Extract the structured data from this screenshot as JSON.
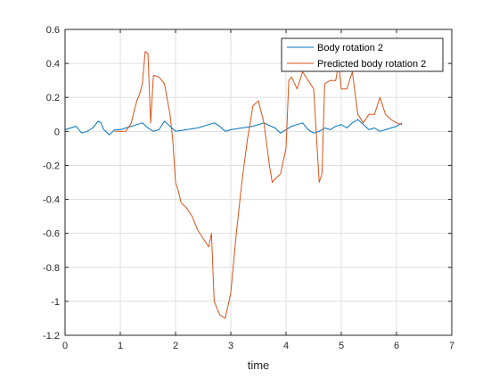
{
  "chart_data": {
    "type": "line",
    "title": "",
    "xlabel": "time",
    "ylabel": "",
    "xlim": [
      0,
      7
    ],
    "ylim": [
      -1.2,
      0.6
    ],
    "xticks": [
      0,
      1,
      2,
      3,
      4,
      5,
      6,
      7
    ],
    "xtick_labels": [
      "0",
      "1",
      "2",
      "3",
      "4",
      "5",
      "6",
      "7"
    ],
    "yticks": [
      -1.2,
      -1,
      -0.8,
      -0.6,
      -0.4,
      -0.2,
      0,
      0.2,
      0.4,
      0.6
    ],
    "ytick_labels": [
      "-1.2",
      "-1",
      "-0.8",
      "-0.6",
      "-0.4",
      "-0.2",
      "0",
      "0.2",
      "0.4",
      "0.6"
    ],
    "grid": true,
    "legend_position": "top-right",
    "series": [
      {
        "name": "Body rotation 2",
        "color": "#0072BD",
        "x": [
          0,
          0.1,
          0.2,
          0.25,
          0.3,
          0.4,
          0.5,
          0.6,
          0.65,
          0.7,
          0.8,
          0.9,
          1.0,
          1.1,
          1.2,
          1.3,
          1.4,
          1.5,
          1.6,
          1.7,
          1.8,
          1.9,
          2.0,
          2.2,
          2.4,
          2.6,
          2.7,
          2.8,
          2.9,
          3.0,
          3.2,
          3.4,
          3.6,
          3.8,
          3.9,
          4.0,
          4.1,
          4.2,
          4.3,
          4.4,
          4.5,
          4.6,
          4.7,
          4.8,
          4.9,
          5.0,
          5.1,
          5.2,
          5.3,
          5.4,
          5.5,
          5.6,
          5.7,
          5.8,
          5.9,
          6.0,
          6.1
        ],
        "y": [
          0.01,
          0.02,
          0.03,
          0.01,
          -0.01,
          0.0,
          0.02,
          0.06,
          0.05,
          0.01,
          -0.02,
          0.01,
          0.01,
          0.02,
          0.03,
          0.04,
          0.05,
          0.02,
          0.0,
          0.01,
          0.06,
          0.03,
          0.0,
          0.01,
          0.02,
          0.04,
          0.05,
          0.03,
          0.0,
          0.01,
          0.02,
          0.03,
          0.05,
          0.02,
          -0.01,
          0.01,
          0.03,
          0.04,
          0.05,
          0.01,
          -0.01,
          0.0,
          0.02,
          0.01,
          0.03,
          0.04,
          0.02,
          0.05,
          0.07,
          0.04,
          0.01,
          0.02,
          0.0,
          0.01,
          0.02,
          0.03,
          0.05
        ]
      },
      {
        "name": "Predicted body rotation 2",
        "color": "#D95319",
        "x": [
          0.9,
          1.1,
          1.2,
          1.25,
          1.3,
          1.35,
          1.4,
          1.45,
          1.5,
          1.55,
          1.6,
          1.7,
          1.8,
          1.9,
          1.95,
          2.0,
          2.05,
          2.1,
          2.2,
          2.3,
          2.4,
          2.5,
          2.6,
          2.65,
          2.7,
          2.8,
          2.9,
          3.0,
          3.1,
          3.2,
          3.3,
          3.4,
          3.5,
          3.6,
          3.7,
          3.75,
          3.8,
          3.9,
          4.0,
          4.05,
          4.1,
          4.2,
          4.3,
          4.4,
          4.5,
          4.6,
          4.65,
          4.7,
          4.8,
          4.9,
          4.95,
          5.0,
          5.1,
          5.2,
          5.3,
          5.4,
          5.5,
          5.6,
          5.7,
          5.8,
          5.9,
          6.0,
          6.1
        ],
        "y": [
          0.0,
          0.0,
          0.05,
          0.12,
          0.18,
          0.22,
          0.28,
          0.47,
          0.46,
          0.05,
          0.33,
          0.32,
          0.28,
          0.1,
          -0.05,
          -0.3,
          -0.35,
          -0.42,
          -0.45,
          -0.5,
          -0.58,
          -0.63,
          -0.68,
          -0.6,
          -1.0,
          -1.08,
          -1.1,
          -0.95,
          -0.6,
          -0.3,
          -0.05,
          0.15,
          0.18,
          0.05,
          -0.2,
          -0.3,
          -0.28,
          -0.25,
          -0.1,
          0.3,
          0.32,
          0.25,
          0.35,
          0.3,
          0.25,
          -0.3,
          -0.25,
          0.28,
          0.3,
          0.3,
          0.4,
          0.25,
          0.25,
          0.35,
          0.1,
          0.05,
          0.1,
          0.1,
          0.2,
          0.1,
          0.07,
          0.05,
          0.04
        ]
      }
    ]
  }
}
